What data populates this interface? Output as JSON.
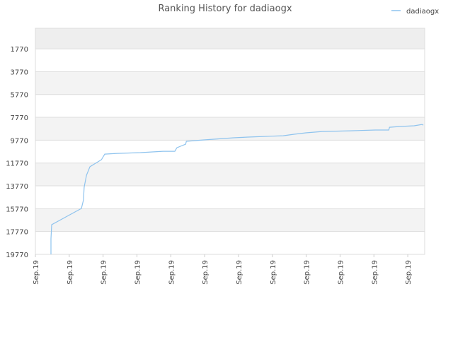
{
  "chart_data": {
    "type": "line",
    "title": "Ranking History for dadiaogx",
    "x": [
      0.46,
      0.46,
      0.48,
      1.36,
      1.42,
      1.44,
      1.51,
      1.61,
      1.95,
      2.05,
      2.41,
      3.1,
      3.77,
      4.12,
      4.18,
      4.44,
      4.46,
      4.94,
      5.86,
      6.28,
      7.32,
      7.64,
      7.99,
      8.47,
      9.31,
      10.04,
      10.44,
      10.46,
      10.77,
      11.19,
      11.42,
      11.46
    ],
    "series": [
      {
        "name": "dadiaogx",
        "color": "#8ec3ee",
        "values": [
          19770,
          18410,
          17170,
          15750,
          15010,
          13890,
          12840,
          12100,
          11480,
          10990,
          10930,
          10860,
          10740,
          10740,
          10430,
          10120,
          9870,
          9750,
          9560,
          9500,
          9380,
          9250,
          9130,
          9010,
          8950,
          8880,
          8880,
          8640,
          8570,
          8510,
          8390,
          8450
        ]
      }
    ],
    "xlim": [
      0,
      11.5
    ],
    "xticks": [
      {
        "value": 0,
        "label": "Sep.19"
      },
      {
        "value": 1,
        "label": "Sep.19"
      },
      {
        "value": 2,
        "label": "Sep.19"
      },
      {
        "value": 3,
        "label": "Sep.19"
      },
      {
        "value": 4,
        "label": "Sep.19"
      },
      {
        "value": 5,
        "label": "Sep.19"
      },
      {
        "value": 6,
        "label": "Sep.19"
      },
      {
        "value": 7,
        "label": "Sep.19"
      },
      {
        "value": 8,
        "label": "Sep.19"
      },
      {
        "value": 9,
        "label": "Sep.19"
      },
      {
        "value": 10,
        "label": "Sep.19"
      },
      {
        "value": 11,
        "label": "Sep.19"
      }
    ],
    "ylim": [
      -30,
      19770
    ],
    "y_inverted": true,
    "yticks": [
      1770,
      3770,
      5770,
      7770,
      9770,
      11770,
      13770,
      15770,
      17770,
      19770
    ],
    "grid": true,
    "legend": "top-right"
  }
}
